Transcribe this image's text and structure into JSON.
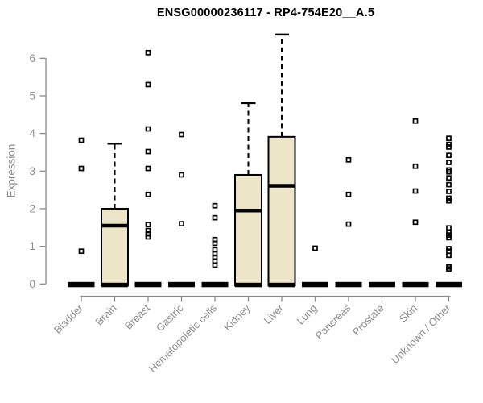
{
  "chart_data": {
    "type": "boxplot",
    "title": "ENSG00000236117 - RP4-754E20__A.5",
    "ylabel": "Expression",
    "xlabel": "",
    "yticks": [
      0,
      1,
      2,
      3,
      4,
      5,
      6
    ],
    "ylim": [
      -0.35,
      6.9
    ],
    "grid": false,
    "legend": "none",
    "box_fill_color": "#ece5c8",
    "box_stroke_color": "#000000",
    "axis_color": "#8c8c8c",
    "categories": [
      "Bladder",
      "Brain",
      "Breast",
      "Gastric",
      "Hematopoietic cells",
      "Kidney",
      "Liver",
      "Lung",
      "Pancreas",
      "Prostate",
      "Skin",
      "Unknown / Other"
    ],
    "boxes": [
      {
        "category": "Bladder",
        "q1": 0,
        "median": 0,
        "q3": 0,
        "whisker_low": 0,
        "whisker_high": 0,
        "outliers": [
          3.82,
          3.07,
          0.87
        ]
      },
      {
        "category": "Brain",
        "q1": 0,
        "median": 1.55,
        "q3": 2.0,
        "whisker_low": 0,
        "whisker_high": 3.73,
        "outliers": []
      },
      {
        "category": "Breast",
        "q1": 0,
        "median": 0,
        "q3": 0,
        "whisker_low": 0,
        "whisker_high": 0,
        "outliers": [
          6.15,
          5.3,
          4.12,
          3.52,
          3.07,
          2.38,
          1.58,
          1.42,
          1.33,
          1.25
        ]
      },
      {
        "category": "Gastric",
        "q1": 0,
        "median": 0,
        "q3": 0,
        "whisker_low": 0,
        "whisker_high": 0,
        "outliers": [
          3.97,
          2.9,
          1.6
        ]
      },
      {
        "category": "Hematopoietic cells",
        "q1": 0,
        "median": 0,
        "q3": 0,
        "whisker_low": 0,
        "whisker_high": 0,
        "outliers": [
          2.08,
          1.76,
          1.18,
          1.08,
          0.91,
          0.8,
          0.71,
          0.61,
          0.5
        ]
      },
      {
        "category": "Kidney",
        "q1": 0,
        "median": 1.95,
        "q3": 2.9,
        "whisker_low": 0,
        "whisker_high": 4.81,
        "outliers": []
      },
      {
        "category": "Liver",
        "q1": 0,
        "median": 2.61,
        "q3": 3.91,
        "whisker_low": 0,
        "whisker_high": 6.63,
        "outliers": []
      },
      {
        "category": "Lung",
        "q1": 0,
        "median": 0,
        "q3": 0,
        "whisker_low": 0,
        "whisker_high": 0,
        "outliers": [
          0.95
        ]
      },
      {
        "category": "Pancreas",
        "q1": 0,
        "median": 0,
        "q3": 0,
        "whisker_low": 0,
        "whisker_high": 0,
        "outliers": [
          3.3,
          2.38,
          1.59
        ]
      },
      {
        "category": "Prostate",
        "q1": 0,
        "median": 0,
        "q3": 0,
        "whisker_low": 0,
        "whisker_high": 0,
        "outliers": []
      },
      {
        "category": "Skin",
        "q1": 0,
        "median": 0,
        "q3": 0,
        "whisker_low": 0,
        "whisker_high": 0,
        "outliers": [
          4.33,
          3.13,
          2.47,
          1.64
        ]
      },
      {
        "category": "Unknown / Other",
        "q1": 0,
        "median": 0,
        "q3": 0,
        "whisker_low": 0,
        "whisker_high": 0,
        "outliers": [
          3.87,
          3.71,
          3.64,
          3.42,
          3.23,
          3.03,
          2.98,
          2.82,
          2.64,
          2.46,
          2.28,
          2.21,
          1.49,
          1.37,
          1.3,
          1.23,
          0.94,
          0.87,
          0.76,
          0.45,
          0.4
        ]
      }
    ]
  }
}
